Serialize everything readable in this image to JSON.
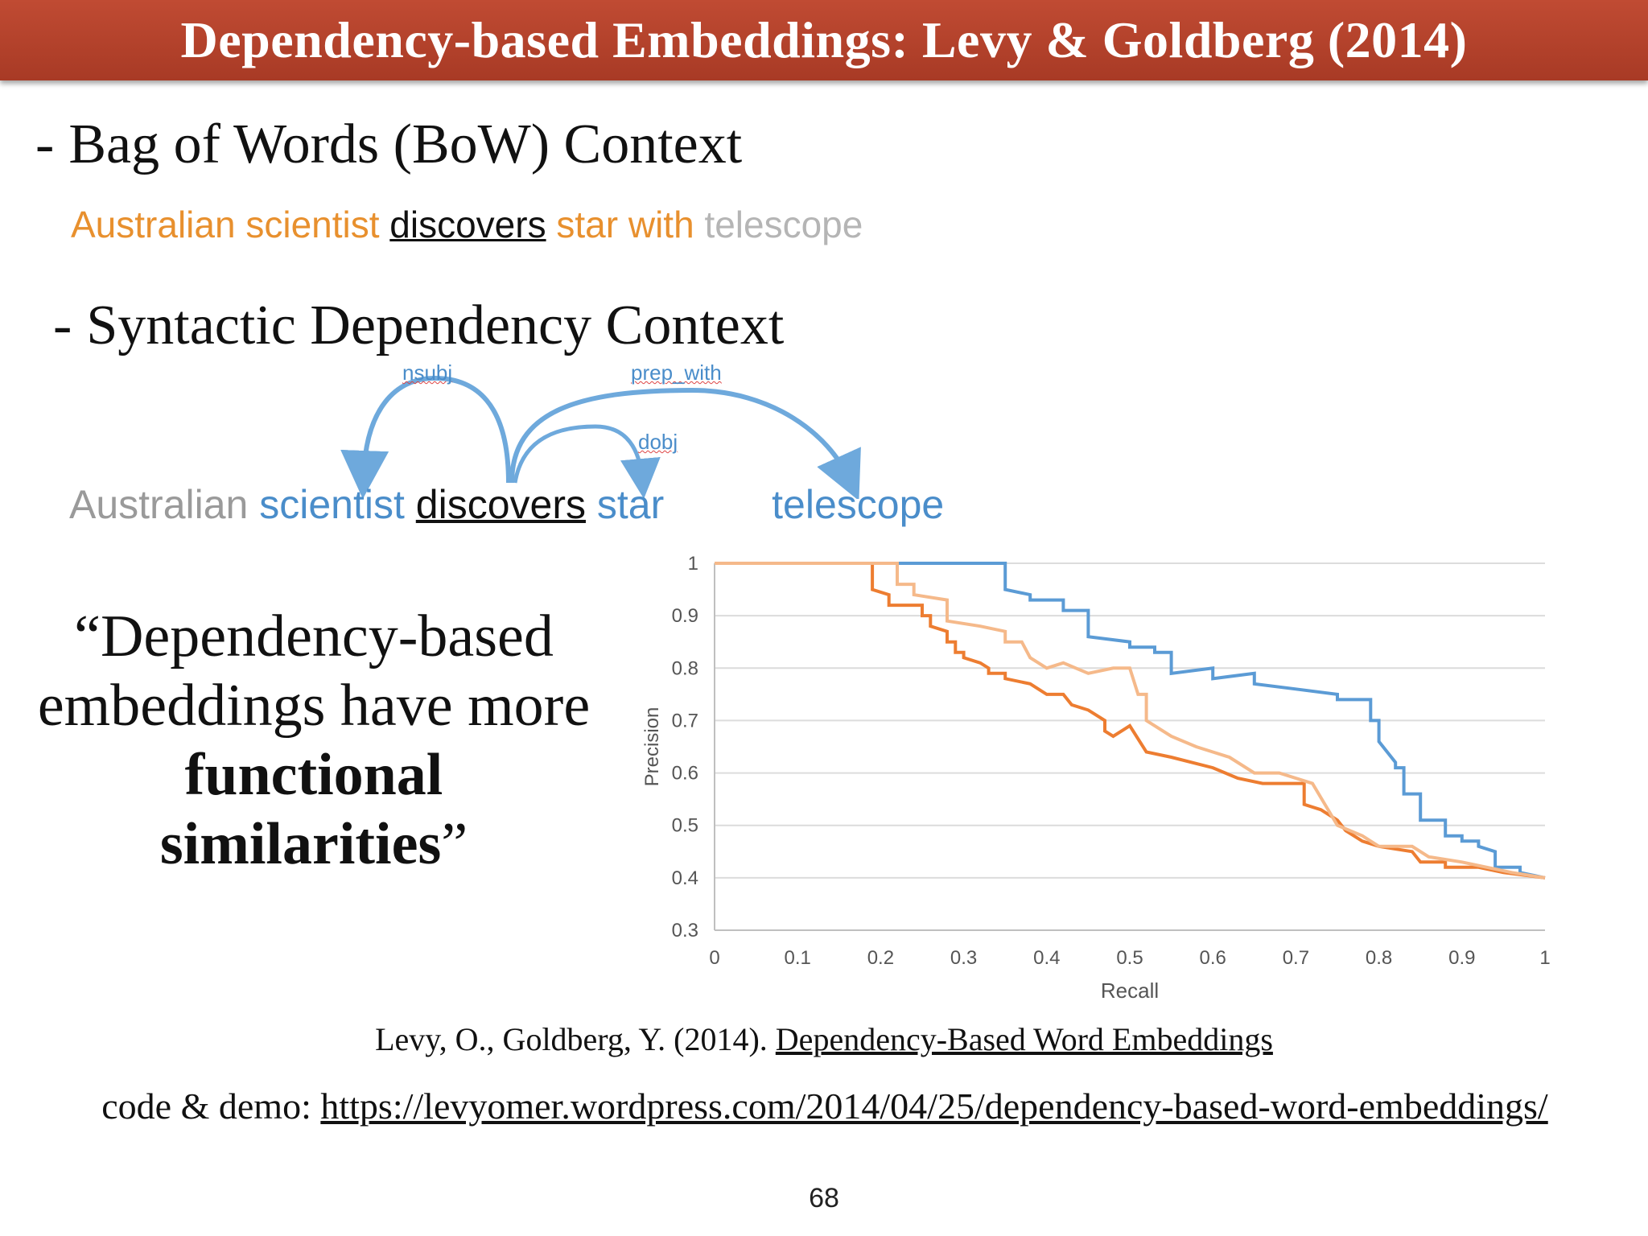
{
  "slide": {
    "title": "Dependency-based Embeddings: Levy & Goldberg (2014)",
    "bullet1": "Bag of Words (BoW) Context",
    "bullet2": "Syntactic Dependency Context",
    "dash": "-",
    "bow_words": [
      "Australian",
      "scientist",
      "discovers",
      "star",
      "with",
      "telescope"
    ],
    "dep_words": [
      "Australian",
      "scientist",
      "discovers",
      "star",
      "telescope"
    ],
    "arc_labels": {
      "nsubj": "nsubj",
      "prep_with": "prep_with",
      "dobj": "dobj"
    },
    "quote": {
      "line1": "“Dependency-based",
      "line2": "embeddings have more",
      "bold1": "functional",
      "bold2": "similarities",
      "close": "”"
    },
    "citation": {
      "authors": "Levy, O., Goldberg, Y. (2014).",
      "paper": "Dependency-Based Word Embeddings"
    },
    "code": {
      "label": "code & demo:",
      "url": "https://levyomer.wordpress.com/2014/04/25/dependency-based-word-embeddings/"
    },
    "page_number": "68",
    "colors": {
      "title_bar": "#b0412b",
      "orange": "#e8902e",
      "blue": "#4a8dca",
      "light_orange": "#f5b98a"
    }
  },
  "chart_data": {
    "type": "line",
    "xlabel": "Recall",
    "ylabel": "Precision",
    "xlim": [
      0,
      1
    ],
    "ylim": [
      0.3,
      1
    ],
    "xticks": [
      "0",
      "0.1",
      "0.2",
      "0.3",
      "0.4",
      "0.5",
      "0.6",
      "0.7",
      "0.8",
      "0.9",
      "1"
    ],
    "yticks": [
      "0.3",
      "0.4",
      "0.5",
      "0.6",
      "0.7",
      "0.8",
      "0.9",
      "1"
    ],
    "grid": true,
    "series": [
      {
        "color": "#5b9bd5",
        "points": [
          [
            0,
            1
          ],
          [
            0.35,
            1
          ],
          [
            0.35,
            0.95
          ],
          [
            0.38,
            0.94
          ],
          [
            0.38,
            0.93
          ],
          [
            0.42,
            0.93
          ],
          [
            0.42,
            0.91
          ],
          [
            0.45,
            0.91
          ],
          [
            0.45,
            0.86
          ],
          [
            0.5,
            0.85
          ],
          [
            0.5,
            0.84
          ],
          [
            0.53,
            0.84
          ],
          [
            0.53,
            0.83
          ],
          [
            0.55,
            0.83
          ],
          [
            0.55,
            0.8
          ],
          [
            0.55,
            0.79
          ],
          [
            0.6,
            0.8
          ],
          [
            0.6,
            0.78
          ],
          [
            0.65,
            0.79
          ],
          [
            0.65,
            0.77
          ],
          [
            0.7,
            0.76
          ],
          [
            0.75,
            0.75
          ],
          [
            0.75,
            0.74
          ],
          [
            0.79,
            0.74
          ],
          [
            0.79,
            0.7
          ],
          [
            0.8,
            0.7
          ],
          [
            0.8,
            0.66
          ],
          [
            0.82,
            0.62
          ],
          [
            0.82,
            0.61
          ],
          [
            0.83,
            0.61
          ],
          [
            0.83,
            0.56
          ],
          [
            0.85,
            0.56
          ],
          [
            0.85,
            0.51
          ],
          [
            0.88,
            0.51
          ],
          [
            0.88,
            0.48
          ],
          [
            0.9,
            0.48
          ],
          [
            0.9,
            0.47
          ],
          [
            0.92,
            0.47
          ],
          [
            0.92,
            0.46
          ],
          [
            0.94,
            0.45
          ],
          [
            0.94,
            0.42
          ],
          [
            0.97,
            0.42
          ],
          [
            0.97,
            0.41
          ],
          [
            1,
            0.4
          ]
        ]
      },
      {
        "color": "#ed7d31",
        "points": [
          [
            0,
            1
          ],
          [
            0.19,
            1
          ],
          [
            0.19,
            0.95
          ],
          [
            0.21,
            0.94
          ],
          [
            0.21,
            0.92
          ],
          [
            0.25,
            0.92
          ],
          [
            0.25,
            0.9
          ],
          [
            0.26,
            0.9
          ],
          [
            0.26,
            0.88
          ],
          [
            0.28,
            0.87
          ],
          [
            0.28,
            0.85
          ],
          [
            0.29,
            0.85
          ],
          [
            0.29,
            0.83
          ],
          [
            0.3,
            0.83
          ],
          [
            0.3,
            0.82
          ],
          [
            0.32,
            0.81
          ],
          [
            0.33,
            0.8
          ],
          [
            0.33,
            0.79
          ],
          [
            0.35,
            0.79
          ],
          [
            0.35,
            0.78
          ],
          [
            0.38,
            0.77
          ],
          [
            0.4,
            0.75
          ],
          [
            0.42,
            0.75
          ],
          [
            0.43,
            0.73
          ],
          [
            0.45,
            0.72
          ],
          [
            0.47,
            0.7
          ],
          [
            0.47,
            0.68
          ],
          [
            0.48,
            0.67
          ],
          [
            0.5,
            0.69
          ],
          [
            0.52,
            0.64
          ],
          [
            0.55,
            0.63
          ],
          [
            0.6,
            0.61
          ],
          [
            0.63,
            0.59
          ],
          [
            0.66,
            0.58
          ],
          [
            0.71,
            0.58
          ],
          [
            0.71,
            0.54
          ],
          [
            0.73,
            0.53
          ],
          [
            0.75,
            0.51
          ],
          [
            0.76,
            0.49
          ],
          [
            0.78,
            0.47
          ],
          [
            0.8,
            0.46
          ],
          [
            0.84,
            0.45
          ],
          [
            0.85,
            0.43
          ],
          [
            0.88,
            0.43
          ],
          [
            0.88,
            0.42
          ],
          [
            0.92,
            0.42
          ],
          [
            0.95,
            0.41
          ],
          [
            1,
            0.4
          ]
        ]
      },
      {
        "color": "#f5b98a",
        "points": [
          [
            0,
            1
          ],
          [
            0.22,
            1
          ],
          [
            0.22,
            0.96
          ],
          [
            0.24,
            0.96
          ],
          [
            0.24,
            0.94
          ],
          [
            0.28,
            0.93
          ],
          [
            0.28,
            0.89
          ],
          [
            0.32,
            0.88
          ],
          [
            0.35,
            0.87
          ],
          [
            0.35,
            0.85
          ],
          [
            0.37,
            0.85
          ],
          [
            0.38,
            0.82
          ],
          [
            0.4,
            0.8
          ],
          [
            0.42,
            0.81
          ],
          [
            0.45,
            0.79
          ],
          [
            0.48,
            0.8
          ],
          [
            0.5,
            0.8
          ],
          [
            0.51,
            0.75
          ],
          [
            0.52,
            0.75
          ],
          [
            0.52,
            0.7
          ],
          [
            0.55,
            0.67
          ],
          [
            0.58,
            0.65
          ],
          [
            0.6,
            0.64
          ],
          [
            0.62,
            0.63
          ],
          [
            0.65,
            0.6
          ],
          [
            0.68,
            0.6
          ],
          [
            0.72,
            0.58
          ],
          [
            0.75,
            0.5
          ],
          [
            0.78,
            0.48
          ],
          [
            0.8,
            0.46
          ],
          [
            0.84,
            0.46
          ],
          [
            0.86,
            0.44
          ],
          [
            0.9,
            0.43
          ],
          [
            0.93,
            0.42
          ],
          [
            0.96,
            0.41
          ],
          [
            1,
            0.4
          ]
        ]
      }
    ]
  }
}
